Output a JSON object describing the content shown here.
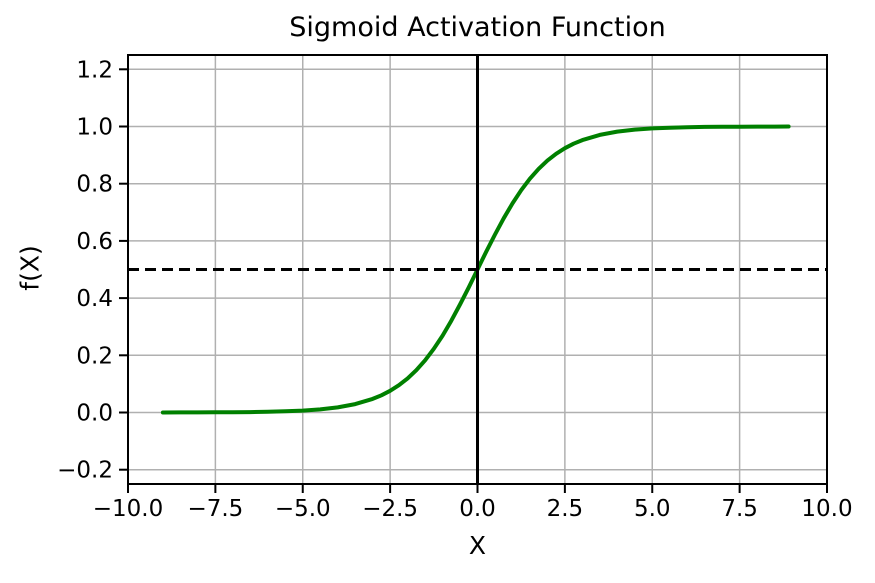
{
  "chart_data": {
    "type": "line",
    "title": "Sigmoid Activation Function",
    "xlabel": "X",
    "ylabel": "f(X)",
    "xlim": [
      -10,
      10
    ],
    "ylim": [
      -0.25,
      1.25
    ],
    "grid": true,
    "grid_color": "#b0b0b0",
    "background_color": "#ffffff",
    "spine_color": "#000000",
    "x_tick_values": [
      -10,
      -7.5,
      -5,
      -2.5,
      0,
      2.5,
      5,
      7.5,
      10
    ],
    "x_tick_labels": [
      "−10.0",
      "−7.5",
      "−5.0",
      "−2.5",
      "0.0",
      "2.5",
      "5.0",
      "7.5",
      "10.0"
    ],
    "y_tick_values": [
      1.2,
      1.0,
      0.8,
      0.6,
      0.4,
      0.2,
      0.0,
      -0.2
    ],
    "y_tick_labels": [
      "1.2",
      "1.0",
      "0.8",
      "0.6",
      "0.4",
      "0.2",
      "0.0",
      "−0.2"
    ],
    "series": [
      {
        "name": "sigmoid",
        "color": "#008000",
        "linewidth": 4,
        "x": [
          -9,
          -8.5,
          -8,
          -7.5,
          -7,
          -6.5,
          -6,
          -5.5,
          -5,
          -4.5,
          -4,
          -3.5,
          -3,
          -2.75,
          -2.5,
          -2.25,
          -2,
          -1.75,
          -1.5,
          -1.25,
          -1,
          -0.75,
          -0.5,
          -0.25,
          0,
          0.25,
          0.5,
          0.75,
          1,
          1.25,
          1.5,
          1.75,
          2,
          2.25,
          2.5,
          2.75,
          3,
          3.5,
          4,
          4.5,
          5,
          5.5,
          6,
          6.5,
          7,
          7.5,
          8,
          8.5,
          8.9
        ],
        "y": [
          0.00012,
          0.0002,
          0.00034,
          0.00055,
          0.00091,
          0.0015,
          0.00247,
          0.00407,
          0.00669,
          0.01099,
          0.01799,
          0.02931,
          0.04743,
          0.06009,
          0.07586,
          0.09535,
          0.1192,
          0.14805,
          0.18243,
          0.2227,
          0.26894,
          0.32082,
          0.37754,
          0.43782,
          0.5,
          0.56218,
          0.62246,
          0.67918,
          0.73106,
          0.7773,
          0.81757,
          0.85195,
          0.8808,
          0.90465,
          0.92414,
          0.93991,
          0.95257,
          0.97069,
          0.98201,
          0.98901,
          0.99331,
          0.99593,
          0.99753,
          0.9985,
          0.99909,
          0.99945,
          0.99966,
          0.9998,
          0.99986
        ]
      }
    ],
    "reference_lines": [
      {
        "name": "threshold-half",
        "orientation": "horizontal",
        "value": 0.5,
        "style": "dashed",
        "color": "#000000",
        "linewidth": 3
      },
      {
        "name": "x-zero",
        "orientation": "vertical",
        "value": 0,
        "style": "solid",
        "color": "#000000",
        "linewidth": 3
      }
    ]
  }
}
